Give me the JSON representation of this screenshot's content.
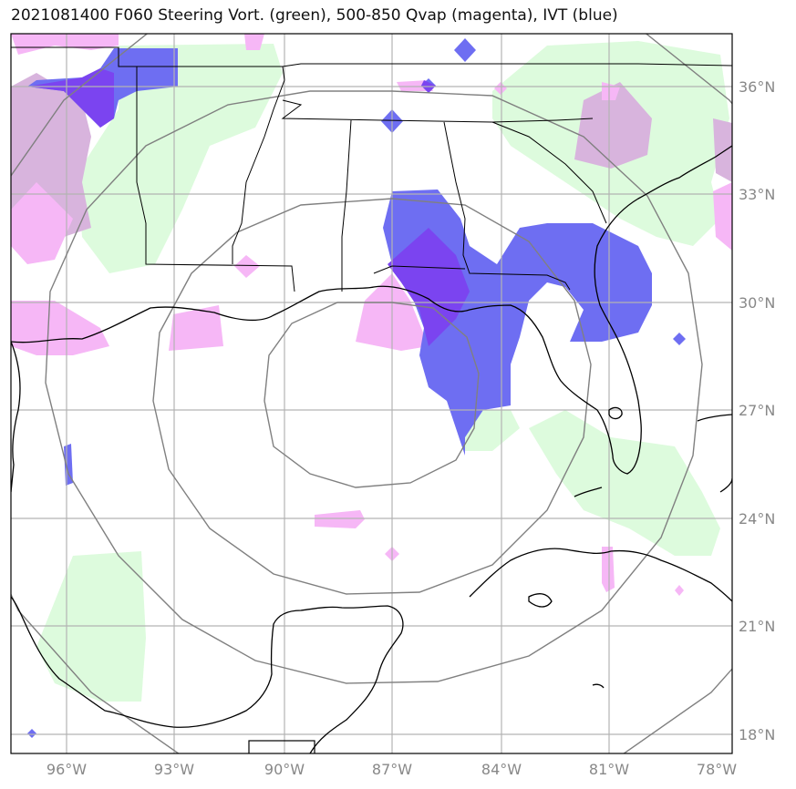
{
  "title": "2021081400 F060 Steering Vort. (green), 500-850 Qvap (magenta), IVT (blue)",
  "axes": {
    "lon_labels": [
      "96°W",
      "93°W",
      "90°W",
      "87°W",
      "84°W",
      "81°W",
      "78°W"
    ],
    "lat_labels": [
      "36°N",
      "33°N",
      "30°N",
      "27°N",
      "24°N",
      "21°N",
      "18°N"
    ]
  },
  "colors": {
    "steering_vort": "#ddfbdd",
    "qvap": "#f6b7f6",
    "ivt": "#6e6ef2",
    "ivt_strong": "#7b44f0",
    "overlap": "#d8b4dd",
    "range_rings": "#808080",
    "gridlines": "#b3b3b3",
    "coastline": "#000000"
  },
  "range_rings": 4,
  "grid": true
}
